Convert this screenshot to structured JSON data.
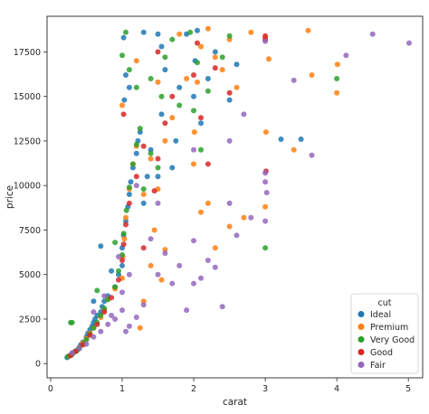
{
  "chart_data": {
    "type": "scatter",
    "title": "",
    "xlabel": "carat",
    "ylabel": "price",
    "xlim": [
      -0.05,
      5.2
    ],
    "ylim": [
      -800,
      19500
    ],
    "x_ticks": [
      0,
      1,
      2,
      3,
      4,
      5
    ],
    "y_ticks": [
      0,
      2500,
      5000,
      7500,
      10000,
      12500,
      15000,
      17500
    ],
    "x_tick_labels": [
      "0",
      "1",
      "2",
      "3",
      "4",
      "5"
    ],
    "y_tick_labels": [
      "0",
      "2500",
      "5000",
      "7500",
      "10000",
      "12500",
      "15000",
      "17500"
    ],
    "grid": false,
    "legend": {
      "title": "cut",
      "placement": "lower-right",
      "entries": [
        "Ideal",
        "Premium",
        "Very Good",
        "Good",
        "Fair"
      ]
    },
    "colors": {
      "Ideal": "#1f77b4",
      "Premium": "#ff7f0e",
      "Very Good": "#2ca02c",
      "Good": "#d62728",
      "Fair": "#9467bd"
    },
    "series": [
      {
        "name": "Ideal",
        "points": [
          [
            0.23,
            340
          ],
          [
            0.25,
            420
          ],
          [
            0.28,
            480
          ],
          [
            0.3,
            560
          ],
          [
            0.32,
            620
          ],
          [
            0.35,
            700
          ],
          [
            0.38,
            780
          ],
          [
            0.4,
            900
          ],
          [
            0.42,
            1050
          ],
          [
            0.45,
            1200
          ],
          [
            0.5,
            1500
          ],
          [
            0.52,
            1700
          ],
          [
            0.55,
            1900
          ],
          [
            0.58,
            2100
          ],
          [
            0.6,
            2300
          ],
          [
            0.62,
            2500
          ],
          [
            0.65,
            2700
          ],
          [
            0.7,
            2900
          ],
          [
            0.72,
            3200
          ],
          [
            0.75,
            3500
          ],
          [
            0.8,
            3800
          ],
          [
            0.9,
            4300
          ],
          [
            0.95,
            5000
          ],
          [
            1.0,
            5500
          ],
          [
            1.0,
            6500
          ],
          [
            1.02,
            7200
          ],
          [
            1.05,
            8000
          ],
          [
            1.08,
            8800
          ],
          [
            1.1,
            9500
          ],
          [
            1.12,
            10200
          ],
          [
            1.15,
            11000
          ],
          [
            1.2,
            11800
          ],
          [
            1.22,
            12500
          ],
          [
            1.25,
            13000
          ],
          [
            1.3,
            9000
          ],
          [
            1.35,
            10500
          ],
          [
            1.4,
            12000
          ],
          [
            1.5,
            10500
          ],
          [
            1.55,
            14000
          ],
          [
            1.6,
            16500
          ],
          [
            1.5,
            18500
          ],
          [
            1.55,
            17800
          ],
          [
            1.03,
            14800
          ],
          [
            1.05,
            16200
          ],
          [
            1.02,
            18300
          ],
          [
            2.0,
            15000
          ],
          [
            2.02,
            17000
          ],
          [
            2.1,
            13500
          ],
          [
            2.2,
            16000
          ],
          [
            1.75,
            12500
          ],
          [
            1.8,
            15500
          ],
          [
            2.5,
            14800
          ],
          [
            2.3,
            17500
          ],
          [
            2.6,
            16800
          ],
          [
            3.22,
            12600
          ],
          [
            3.5,
            12600
          ],
          [
            0.7,
            6600
          ],
          [
            0.85,
            5200
          ],
          [
            0.6,
            3500
          ],
          [
            1.7,
            11000
          ],
          [
            1.9,
            18500
          ],
          [
            2.05,
            18700
          ],
          [
            1.3,
            18600
          ],
          [
            1.1,
            15500
          ]
        ]
      },
      {
        "name": "Premium",
        "points": [
          [
            0.25,
            400
          ],
          [
            0.3,
            550
          ],
          [
            0.35,
            680
          ],
          [
            0.4,
            880
          ],
          [
            0.45,
            1150
          ],
          [
            0.5,
            1400
          ],
          [
            0.55,
            1700
          ],
          [
            0.6,
            2000
          ],
          [
            0.7,
            2600
          ],
          [
            0.75,
            3000
          ],
          [
            0.8,
            3600
          ],
          [
            0.9,
            4200
          ],
          [
            1.0,
            4800
          ],
          [
            1.01,
            6000
          ],
          [
            1.03,
            7000
          ],
          [
            1.05,
            8200
          ],
          [
            1.1,
            9800
          ],
          [
            1.15,
            11200
          ],
          [
            1.2,
            12200
          ],
          [
            1.3,
            9500
          ],
          [
            1.4,
            11500
          ],
          [
            1.45,
            7500
          ],
          [
            1.5,
            9800
          ],
          [
            1.6,
            12500
          ],
          [
            1.7,
            13800
          ],
          [
            1.9,
            16000
          ],
          [
            2.0,
            11200
          ],
          [
            2.01,
            13000
          ],
          [
            2.05,
            15800
          ],
          [
            2.1,
            17800
          ],
          [
            2.2,
            18800
          ],
          [
            2.3,
            17200
          ],
          [
            2.4,
            16500
          ],
          [
            2.5,
            18200
          ],
          [
            2.6,
            15500
          ],
          [
            2.8,
            18600
          ],
          [
            3.0,
            18300
          ],
          [
            3.01,
            13000
          ],
          [
            3.05,
            17100
          ],
          [
            3.4,
            12000
          ],
          [
            3.6,
            18700
          ],
          [
            3.65,
            16200
          ],
          [
            4.0,
            15200
          ],
          [
            4.01,
            16800
          ],
          [
            2.1,
            8500
          ],
          [
            2.2,
            9000
          ],
          [
            2.3,
            6500
          ],
          [
            2.5,
            7700
          ],
          [
            2.7,
            8200
          ],
          [
            3.0,
            8800
          ],
          [
            1.55,
            4700
          ],
          [
            1.6,
            6400
          ],
          [
            1.4,
            5500
          ],
          [
            1.25,
            2000
          ],
          [
            1.3,
            3500
          ],
          [
            1.0,
            14500
          ],
          [
            1.2,
            17000
          ],
          [
            1.8,
            18500
          ],
          [
            1.5,
            15800
          ]
        ]
      },
      {
        "name": "Very Good",
        "points": [
          [
            0.24,
            390
          ],
          [
            0.3,
            520
          ],
          [
            0.36,
            700
          ],
          [
            0.4,
            860
          ],
          [
            0.46,
            1100
          ],
          [
            0.5,
            1350
          ],
          [
            0.55,
            1650
          ],
          [
            0.6,
            2000
          ],
          [
            0.65,
            2300
          ],
          [
            0.7,
            2700
          ],
          [
            0.75,
            3100
          ],
          [
            0.8,
            3600
          ],
          [
            0.9,
            4300
          ],
          [
            0.95,
            5200
          ],
          [
            1.0,
            6100
          ],
          [
            1.02,
            7300
          ],
          [
            1.06,
            8600
          ],
          [
            1.1,
            9900
          ],
          [
            1.15,
            11200
          ],
          [
            1.2,
            12300
          ],
          [
            1.25,
            13200
          ],
          [
            1.3,
            9800
          ],
          [
            1.4,
            11800
          ],
          [
            1.5,
            11000
          ],
          [
            1.55,
            15000
          ],
          [
            1.6,
            17200
          ],
          [
            1.7,
            18200
          ],
          [
            1.0,
            17300
          ],
          [
            1.05,
            18600
          ],
          [
            1.1,
            16500
          ],
          [
            2.0,
            14200
          ],
          [
            2.05,
            16900
          ],
          [
            2.1,
            12000
          ],
          [
            2.2,
            15300
          ],
          [
            2.4,
            17200
          ],
          [
            3.0,
            6500
          ],
          [
            4.0,
            16000
          ],
          [
            0.3,
            2300
          ],
          [
            0.28,
            2300
          ],
          [
            0.9,
            6800
          ],
          [
            1.4,
            16000
          ],
          [
            1.8,
            14500
          ],
          [
            2.5,
            18400
          ],
          [
            1.95,
            18600
          ],
          [
            0.65,
            4100
          ],
          [
            1.2,
            15500
          ]
        ]
      },
      {
        "name": "Good",
        "points": [
          [
            0.28,
            450
          ],
          [
            0.35,
            680
          ],
          [
            0.45,
            1050
          ],
          [
            0.55,
            1600
          ],
          [
            0.65,
            2200
          ],
          [
            0.75,
            2900
          ],
          [
            0.85,
            3700
          ],
          [
            0.95,
            4700
          ],
          [
            1.0,
            5800
          ],
          [
            1.02,
            6700
          ],
          [
            1.05,
            7800
          ],
          [
            1.1,
            9000
          ],
          [
            1.2,
            10500
          ],
          [
            1.3,
            12200
          ],
          [
            1.45,
            9700
          ],
          [
            1.5,
            11500
          ],
          [
            1.6,
            13500
          ],
          [
            1.7,
            15000
          ],
          [
            2.0,
            16200
          ],
          [
            2.05,
            18000
          ],
          [
            2.1,
            13800
          ],
          [
            2.3,
            16600
          ],
          [
            2.5,
            15200
          ],
          [
            3.0,
            18400
          ],
          [
            3.0,
            18200
          ],
          [
            3.01,
            10800
          ],
          [
            1.02,
            14000
          ],
          [
            1.5,
            17500
          ],
          [
            1.3,
            6500
          ],
          [
            2.2,
            11200
          ]
        ]
      },
      {
        "name": "Fair",
        "points": [
          [
            0.3,
            600
          ],
          [
            0.4,
            850
          ],
          [
            0.5,
            1100
          ],
          [
            0.6,
            1500
          ],
          [
            0.7,
            1800
          ],
          [
            0.8,
            2200
          ],
          [
            0.85,
            2700
          ],
          [
            0.9,
            2500
          ],
          [
            1.0,
            3000
          ],
          [
            1.0,
            4000
          ],
          [
            1.05,
            1800
          ],
          [
            1.1,
            2100
          ],
          [
            1.2,
            2600
          ],
          [
            1.3,
            3300
          ],
          [
            1.5,
            5000
          ],
          [
            1.6,
            6200
          ],
          [
            1.7,
            4500
          ],
          [
            1.8,
            5500
          ],
          [
            1.9,
            3000
          ],
          [
            2.0,
            4500
          ],
          [
            2.0,
            6900
          ],
          [
            2.1,
            4800
          ],
          [
            2.2,
            5800
          ],
          [
            2.3,
            5400
          ],
          [
            2.4,
            3200
          ],
          [
            2.5,
            9000
          ],
          [
            2.6,
            7200
          ],
          [
            2.8,
            8200
          ],
          [
            3.0,
            18100
          ],
          [
            3.0,
            10700
          ],
          [
            3.0,
            8000
          ],
          [
            3.0,
            10200
          ],
          [
            3.02,
            9600
          ],
          [
            3.4,
            15900
          ],
          [
            3.65,
            11700
          ],
          [
            4.13,
            17300
          ],
          [
            4.5,
            18500
          ],
          [
            5.01,
            18000
          ],
          [
            2.0,
            12000
          ],
          [
            1.5,
            9000
          ],
          [
            1.2,
            10000
          ],
          [
            0.95,
            6000
          ],
          [
            0.75,
            3800
          ],
          [
            2.7,
            14000
          ],
          [
            2.5,
            12500
          ],
          [
            1.1,
            5000
          ],
          [
            1.4,
            7000
          ],
          [
            0.6,
            2900
          ]
        ]
      }
    ]
  }
}
